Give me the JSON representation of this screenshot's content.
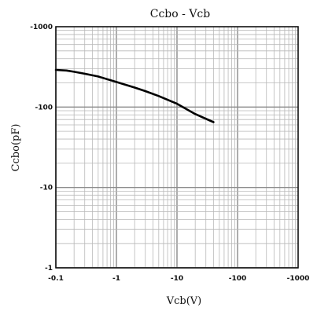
{
  "chart_data": {
    "type": "line",
    "title": "Ccbo - Vcb",
    "xlabel": "Vcb(V)",
    "ylabel": "Ccbo(pF)",
    "x_scale": "log",
    "y_scale": "log",
    "xlim": [
      -0.1,
      -1000
    ],
    "ylim": [
      -1,
      -1000
    ],
    "x_ticks": [
      "-0.1",
      "-1",
      "-10",
      "-100",
      "-1000"
    ],
    "y_ticks": [
      "-1000",
      "-100",
      "-10",
      "-1"
    ],
    "grid": true,
    "series": [
      {
        "x": [
          -0.1,
          -0.15,
          -0.2,
          -0.3,
          -0.5,
          -1,
          -2,
          -3,
          -5,
          -10,
          -20,
          -40
        ],
        "y": [
          -290,
          -285,
          -275,
          -260,
          -240,
          -205,
          -175,
          -158,
          -137,
          -110,
          -82,
          -65
        ]
      }
    ]
  }
}
